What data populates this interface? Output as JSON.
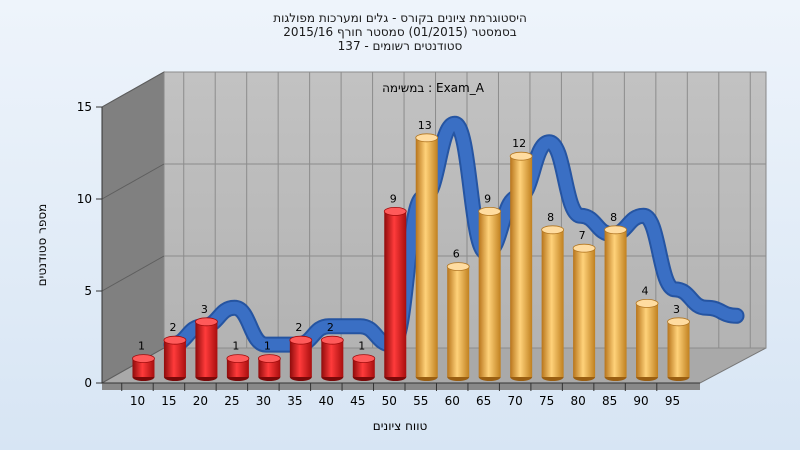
{
  "chart_data": {
    "type": "bar",
    "title_lines": [
      "היסטוגרמת ציונים בקורס - גלים ומערכות מפולגות",
      "בסמסטר  (01/2015)  סמסטר חורף 2015/16",
      "סטודנטים רשומים - 137"
    ],
    "subtitle": "במשימה : Exam_A",
    "xlabel": "טווח ציונים",
    "ylabel": "מספר סטודנטים",
    "categories": [
      "10",
      "15",
      "20",
      "25",
      "30",
      "35",
      "40",
      "45",
      "50",
      "55",
      "60",
      "65",
      "70",
      "75",
      "80",
      "85",
      "90",
      "95"
    ],
    "values": [
      1,
      2,
      3,
      1,
      1,
      2,
      2,
      1,
      9,
      13,
      6,
      9,
      12,
      8,
      7,
      8,
      4,
      3
    ],
    "bar_colors": [
      "#d81818",
      "#d81818",
      "#d81818",
      "#d81818",
      "#d81818",
      "#d81818",
      "#d81818",
      "#d81818",
      "#d81818",
      "#e8a43a",
      "#e8a43a",
      "#e8a43a",
      "#e8a43a",
      "#e8a43a",
      "#e8a43a",
      "#e8a43a",
      "#e8a43a",
      "#e8a43a"
    ],
    "trend_color": "#3a6fc4",
    "ylim": [
      0,
      15
    ],
    "yticks": [
      0,
      5,
      10,
      15
    ],
    "grid": true
  }
}
